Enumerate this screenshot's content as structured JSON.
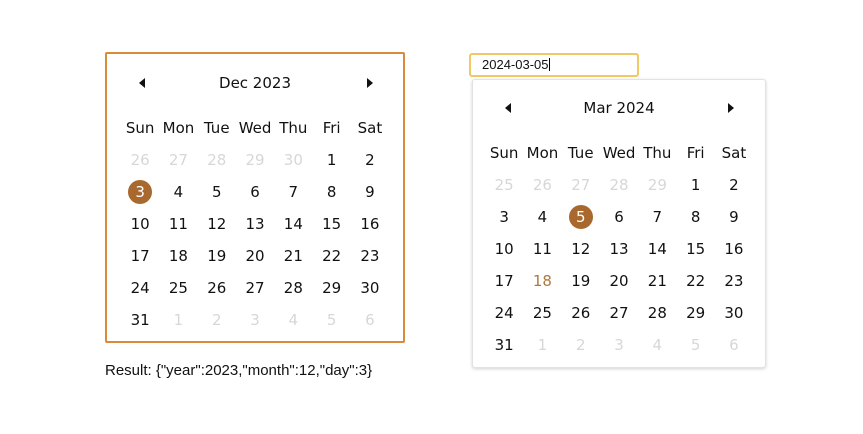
{
  "inline_calendar": {
    "title": "Dec 2023",
    "weekdays": [
      "Sun",
      "Mon",
      "Tue",
      "Wed",
      "Thu",
      "Fri",
      "Sat"
    ],
    "selected_day": "3",
    "weeks": [
      [
        {
          "d": "26",
          "m": "prev"
        },
        {
          "d": "27",
          "m": "prev"
        },
        {
          "d": "28",
          "m": "prev"
        },
        {
          "d": "29",
          "m": "prev"
        },
        {
          "d": "30",
          "m": "prev"
        },
        {
          "d": "1"
        },
        {
          "d": "2"
        }
      ],
      [
        {
          "d": "3",
          "sel": true
        },
        {
          "d": "4"
        },
        {
          "d": "5"
        },
        {
          "d": "6"
        },
        {
          "d": "7"
        },
        {
          "d": "8"
        },
        {
          "d": "9"
        }
      ],
      [
        {
          "d": "10"
        },
        {
          "d": "11"
        },
        {
          "d": "12"
        },
        {
          "d": "13"
        },
        {
          "d": "14"
        },
        {
          "d": "15"
        },
        {
          "d": "16"
        }
      ],
      [
        {
          "d": "17"
        },
        {
          "d": "18"
        },
        {
          "d": "19"
        },
        {
          "d": "20"
        },
        {
          "d": "21"
        },
        {
          "d": "22"
        },
        {
          "d": "23"
        }
      ],
      [
        {
          "d": "24"
        },
        {
          "d": "25"
        },
        {
          "d": "26"
        },
        {
          "d": "27"
        },
        {
          "d": "28"
        },
        {
          "d": "29"
        },
        {
          "d": "30"
        }
      ],
      [
        {
          "d": "31"
        },
        {
          "d": "1",
          "m": "next"
        },
        {
          "d": "2",
          "m": "next"
        },
        {
          "d": "3",
          "m": "next"
        },
        {
          "d": "4",
          "m": "next"
        },
        {
          "d": "5",
          "m": "next"
        },
        {
          "d": "6",
          "m": "next"
        }
      ]
    ]
  },
  "date_input": {
    "value": "2024-03-05"
  },
  "popup_calendar": {
    "title": "Mar 2024",
    "weekdays": [
      "Sun",
      "Mon",
      "Tue",
      "Wed",
      "Thu",
      "Fri",
      "Sat"
    ],
    "selected_day": "5",
    "today_day": "18",
    "weeks": [
      [
        {
          "d": "25",
          "m": "prev"
        },
        {
          "d": "26",
          "m": "prev"
        },
        {
          "d": "27",
          "m": "prev"
        },
        {
          "d": "28",
          "m": "prev"
        },
        {
          "d": "29",
          "m": "prev"
        },
        {
          "d": "1"
        },
        {
          "d": "2"
        }
      ],
      [
        {
          "d": "3"
        },
        {
          "d": "4"
        },
        {
          "d": "5",
          "sel": true
        },
        {
          "d": "6"
        },
        {
          "d": "7"
        },
        {
          "d": "8"
        },
        {
          "d": "9"
        }
      ],
      [
        {
          "d": "10"
        },
        {
          "d": "11"
        },
        {
          "d": "12"
        },
        {
          "d": "13"
        },
        {
          "d": "14"
        },
        {
          "d": "15"
        },
        {
          "d": "16"
        }
      ],
      [
        {
          "d": "17"
        },
        {
          "d": "18",
          "today": true
        },
        {
          "d": "19"
        },
        {
          "d": "20"
        },
        {
          "d": "21"
        },
        {
          "d": "22"
        },
        {
          "d": "23"
        }
      ],
      [
        {
          "d": "24"
        },
        {
          "d": "25"
        },
        {
          "d": "26"
        },
        {
          "d": "27"
        },
        {
          "d": "28"
        },
        {
          "d": "29"
        },
        {
          "d": "30"
        }
      ],
      [
        {
          "d": "31"
        },
        {
          "d": "1",
          "m": "next"
        },
        {
          "d": "2",
          "m": "next"
        },
        {
          "d": "3",
          "m": "next"
        },
        {
          "d": "4",
          "m": "next"
        },
        {
          "d": "5",
          "m": "next"
        },
        {
          "d": "6",
          "m": "next"
        }
      ]
    ]
  },
  "result": {
    "text": "Result: {\"year\":2023,\"month\":12,\"day\":3}"
  },
  "icons": {
    "prev": "caret-left-icon",
    "next": "caret-right-icon"
  },
  "colors": {
    "inline_border": "#d98a3a",
    "input_border": "#f0c964",
    "selected_bg": "#a8682e",
    "today_text": "#b0773d",
    "outside_month_text": "#d7d7d7"
  }
}
